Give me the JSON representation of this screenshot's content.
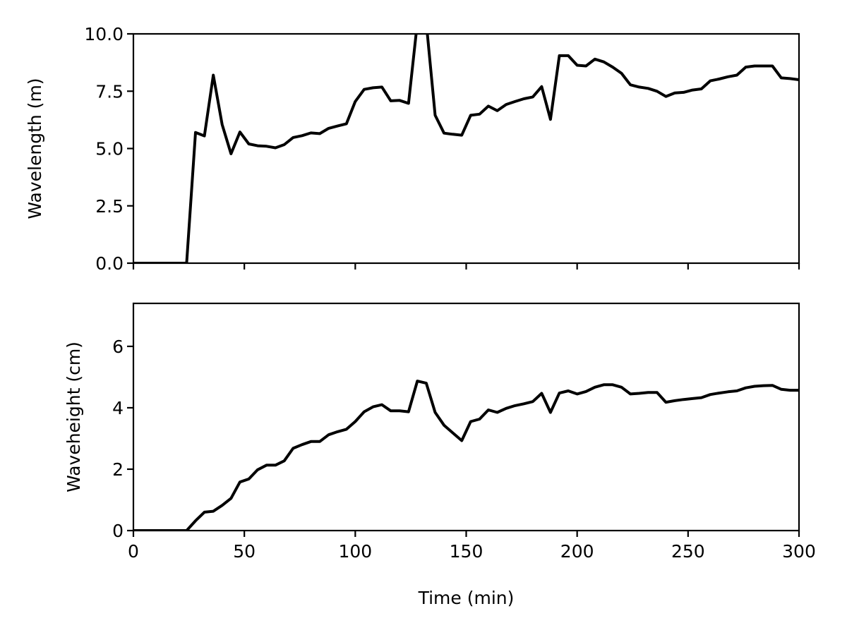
{
  "chart_data": [
    {
      "type": "line",
      "title": "",
      "xlabel": "",
      "ylabel": "Wavelength (m)",
      "xlim": [
        0,
        300
      ],
      "ylim": [
        0,
        10
      ],
      "grid": false,
      "x_ticks": [
        0,
        50,
        100,
        150,
        200,
        250,
        300
      ],
      "x_tick_labels_visible": false,
      "y_ticks": [
        0,
        2.5,
        5,
        7.5,
        10
      ],
      "y_tick_labels": [
        "0.0",
        "2.5",
        "5.0",
        "7.5",
        "10.0"
      ],
      "series": [
        {
          "color": "#000000",
          "x": [
            0,
            4,
            8,
            12,
            16,
            20,
            24,
            28,
            32,
            36,
            40,
            44,
            48,
            52,
            56,
            60,
            64,
            68,
            72,
            76,
            80,
            84,
            88,
            92,
            96,
            100,
            104,
            108,
            112,
            116,
            120,
            124,
            128,
            132,
            136,
            140,
            144,
            148,
            152,
            156,
            160,
            164,
            168,
            172,
            176,
            180,
            184,
            188,
            192,
            196,
            200,
            204,
            208,
            212,
            216,
            220,
            224,
            228,
            232,
            236,
            240,
            244,
            248,
            252,
            256,
            260,
            264,
            268,
            272,
            276,
            280,
            284,
            288,
            292,
            296,
            300
          ],
          "y": [
            0,
            0,
            0,
            0,
            0,
            0,
            0,
            5.7,
            5.55,
            8.2,
            6.05,
            4.77,
            5.72,
            5.2,
            5.12,
            5.1,
            5.03,
            5.17,
            5.48,
            5.56,
            5.68,
            5.65,
            5.88,
            5.98,
            6.08,
            7.05,
            7.58,
            7.65,
            7.68,
            7.08,
            7.1,
            6.97,
            10.5,
            10.5,
            6.45,
            5.67,
            5.62,
            5.58,
            6.45,
            6.5,
            6.85,
            6.65,
            6.92,
            7.05,
            7.17,
            7.25,
            7.7,
            6.27,
            9.05,
            9.05,
            8.63,
            8.6,
            8.9,
            8.78,
            8.55,
            8.28,
            7.78,
            7.68,
            7.62,
            7.5,
            7.27,
            7.42,
            7.45,
            7.55,
            7.6,
            7.95,
            8.03,
            8.13,
            8.2,
            8.55,
            8.6,
            8.6,
            8.6,
            8.08,
            8.05,
            8.0
          ]
        }
      ]
    },
    {
      "type": "line",
      "title": "",
      "xlabel": "Time (min)",
      "ylabel": "Waveheight (cm)",
      "xlim": [
        0,
        300
      ],
      "ylim": [
        0,
        7.4
      ],
      "grid": false,
      "x_ticks": [
        0,
        50,
        100,
        150,
        200,
        250,
        300
      ],
      "x_tick_labels": [
        "0",
        "50",
        "100",
        "150",
        "200",
        "250",
        "300"
      ],
      "y_ticks": [
        0,
        2,
        4,
        6
      ],
      "y_tick_labels": [
        "0",
        "2",
        "4",
        "6"
      ],
      "series": [
        {
          "color": "#000000",
          "x": [
            0,
            4,
            8,
            12,
            16,
            20,
            24,
            28,
            32,
            36,
            40,
            44,
            48,
            52,
            56,
            60,
            64,
            68,
            72,
            76,
            80,
            84,
            88,
            92,
            96,
            100,
            104,
            108,
            112,
            116,
            120,
            124,
            128,
            132,
            136,
            140,
            144,
            148,
            152,
            156,
            160,
            164,
            168,
            172,
            176,
            180,
            184,
            188,
            192,
            196,
            200,
            204,
            208,
            212,
            216,
            220,
            224,
            228,
            232,
            236,
            240,
            244,
            248,
            252,
            256,
            260,
            264,
            268,
            272,
            276,
            280,
            284,
            288,
            292,
            296,
            300
          ],
          "y": [
            0,
            0,
            0,
            0,
            0,
            0,
            0,
            0.32,
            0.6,
            0.63,
            0.82,
            1.05,
            1.58,
            1.68,
            1.98,
            2.13,
            2.13,
            2.27,
            2.68,
            2.8,
            2.9,
            2.9,
            3.12,
            3.22,
            3.3,
            3.55,
            3.87,
            4.03,
            4.1,
            3.9,
            3.9,
            3.87,
            4.87,
            4.8,
            3.85,
            3.43,
            3.18,
            2.93,
            3.55,
            3.63,
            3.93,
            3.85,
            3.98,
            4.07,
            4.13,
            4.2,
            4.47,
            3.85,
            4.48,
            4.55,
            4.45,
            4.53,
            4.67,
            4.75,
            4.75,
            4.67,
            4.45,
            4.47,
            4.5,
            4.5,
            4.18,
            4.23,
            4.27,
            4.3,
            4.33,
            4.43,
            4.48,
            4.52,
            4.55,
            4.65,
            4.7,
            4.72,
            4.73,
            4.6,
            4.57,
            4.57
          ]
        }
      ]
    }
  ]
}
